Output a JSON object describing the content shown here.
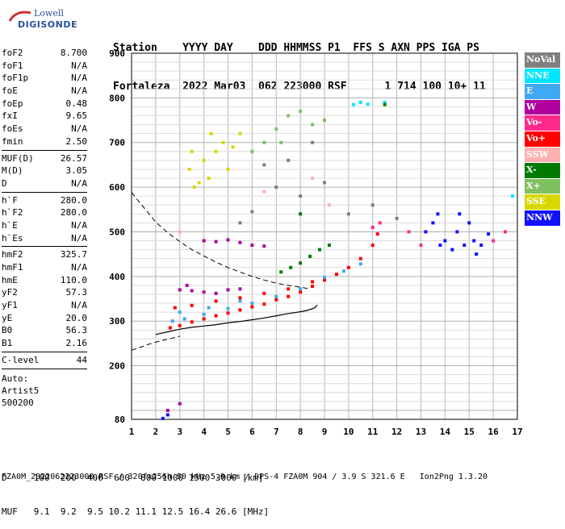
{
  "logo": {
    "line1": "Lowell",
    "line2": "DIGISONDE"
  },
  "header": {
    "labels": "Station    YYYY DAY    DDD HHMMSS P1  FFS S AXN PPS IGA PS",
    "values": "Fortaleza  2022 Mar03  062 223000 RSF      1 714 100 10+ 11"
  },
  "params": {
    "group1": [
      {
        "k": "foF2",
        "v": "8.700"
      },
      {
        "k": "foF1",
        "v": "N/A"
      },
      {
        "k": "foF1p",
        "v": "N/A"
      },
      {
        "k": "foE",
        "v": "N/A"
      },
      {
        "k": "foEp",
        "v": "0.48"
      },
      {
        "k": "fxI",
        "v": "9.65"
      },
      {
        "k": "foEs",
        "v": "N/A"
      },
      {
        "k": "fmin",
        "v": "2.50"
      }
    ],
    "group2": [
      {
        "k": "MUF(D)",
        "v": "26.57"
      },
      {
        "k": "M(D)",
        "v": "3.05"
      },
      {
        "k": "D",
        "v": "N/A"
      }
    ],
    "group3": [
      {
        "k": "h`F",
        "v": "280.0"
      },
      {
        "k": "h`F2",
        "v": "280.0"
      },
      {
        "k": "h`E",
        "v": "N/A"
      },
      {
        "k": "h`Es",
        "v": "N/A"
      }
    ],
    "group4": [
      {
        "k": "hmF2",
        "v": "325.7"
      },
      {
        "k": "hmF1",
        "v": "N/A"
      },
      {
        "k": "hmE",
        "v": "110.0"
      },
      {
        "k": "yF2",
        "v": "57.3"
      },
      {
        "k": "yF1",
        "v": "N/A"
      },
      {
        "k": "yE",
        "v": "20.0"
      },
      {
        "k": "B0",
        "v": "56.3"
      },
      {
        "k": "B1",
        "v": "2.16"
      }
    ],
    "group5": [
      {
        "k": "C-level",
        "v": "44"
      }
    ],
    "auto": [
      "Auto:",
      "Artist5",
      "500200"
    ]
  },
  "legend": [
    {
      "label": "NoVal",
      "color": "#808080"
    },
    {
      "label": "NNE",
      "color": "#00e5ff"
    },
    {
      "label": "E",
      "color": "#3fa9f5"
    },
    {
      "label": "W",
      "color": "#b0009f"
    },
    {
      "label": "Vo-",
      "color": "#ff2a8c"
    },
    {
      "label": "Vo+",
      "color": "#ff0000"
    },
    {
      "label": "SSW",
      "color": "#ffb0b0"
    },
    {
      "label": "X-",
      "color": "#007a00"
    },
    {
      "label": "X+",
      "color": "#7fc060"
    },
    {
      "label": "SSE",
      "color": "#d8d800"
    },
    {
      "label": "NNW",
      "color": "#1010ff"
    }
  ],
  "footer": {
    "line1": "D     100  200  400  600  800 1000 1500 3000 [km]",
    "line2": "MUF   9.1  9.2  9.5 10.2 11.1 12.5 16.4 26.6 [MHz]",
    "line3": "FZA0M_2022062223000.RSF / 320fx256h 50 kHz 5.0 km / DPS-4 FZA0M 904 / 3.9 S 321.6 E   Ion2Png 1.3.20"
  },
  "chart_data": {
    "type": "scatter",
    "xlabel": "",
    "ylabel": "",
    "xlim": [
      1,
      17
    ],
    "ylim": [
      80,
      900
    ],
    "xticks": [
      1,
      2,
      3,
      4,
      5,
      6,
      7,
      8,
      9,
      10,
      11,
      12,
      13,
      14,
      15,
      16,
      17
    ],
    "yticks": [
      80,
      200,
      300,
      400,
      500,
      600,
      700,
      800,
      900
    ],
    "grid": true,
    "legend_position": "right",
    "profile_solid": [
      [
        2.0,
        270
      ],
      [
        2.5,
        276
      ],
      [
        3.0,
        282
      ],
      [
        3.5,
        286
      ],
      [
        4.0,
        289
      ],
      [
        4.5,
        292
      ],
      [
        5.0,
        296
      ],
      [
        5.5,
        299
      ],
      [
        6.0,
        303
      ],
      [
        6.5,
        307
      ],
      [
        7.0,
        312
      ],
      [
        7.5,
        317
      ],
      [
        8.0,
        321
      ],
      [
        8.3,
        324
      ],
      [
        8.6,
        330
      ],
      [
        8.7,
        336
      ]
    ],
    "profile_dashed": [
      [
        1.0,
        588
      ],
      [
        1.5,
        555
      ],
      [
        2.0,
        522
      ],
      [
        2.5,
        498
      ],
      [
        3.0,
        478
      ],
      [
        3.5,
        460
      ],
      [
        4.0,
        446
      ],
      [
        4.5,
        432
      ],
      [
        5.0,
        420
      ],
      [
        5.5,
        410
      ],
      [
        6.0,
        400
      ],
      [
        6.5,
        392
      ],
      [
        7.0,
        385
      ],
      [
        7.5,
        380
      ],
      [
        8.0,
        376
      ],
      [
        8.3,
        373
      ]
    ],
    "profile_lower_dashed": [
      [
        1.0,
        235
      ],
      [
        1.3,
        240
      ],
      [
        1.7,
        248
      ],
      [
        2.2,
        256
      ],
      [
        2.7,
        262
      ],
      [
        3.0,
        266
      ]
    ],
    "series": [
      {
        "name": "Vo+",
        "points": [
          [
            2.6,
            285
          ],
          [
            3.0,
            290
          ],
          [
            3.5,
            298
          ],
          [
            4.0,
            305
          ],
          [
            4.5,
            312
          ],
          [
            5.0,
            318
          ],
          [
            5.5,
            325
          ],
          [
            6.0,
            332
          ],
          [
            6.5,
            338
          ],
          [
            7.0,
            348
          ],
          [
            7.5,
            355
          ],
          [
            8.0,
            365
          ],
          [
            8.5,
            378
          ],
          [
            9.0,
            392
          ],
          [
            9.5,
            405
          ],
          [
            10.0,
            420
          ],
          [
            10.5,
            440
          ],
          [
            11.0,
            470
          ],
          [
            11.2,
            495
          ],
          [
            2.8,
            330
          ],
          [
            3.5,
            335
          ],
          [
            4.5,
            345
          ],
          [
            5.5,
            352
          ],
          [
            6.5,
            362
          ],
          [
            7.5,
            372
          ],
          [
            8.5,
            388
          ]
        ]
      },
      {
        "name": "E",
        "points": [
          [
            2.7,
            300
          ],
          [
            3.2,
            305
          ],
          [
            4.0,
            315
          ],
          [
            5.0,
            328
          ],
          [
            6.0,
            340
          ],
          [
            7.0,
            355
          ],
          [
            8.0,
            372
          ],
          [
            9.0,
            398
          ],
          [
            9.8,
            412
          ],
          [
            10.5,
            428
          ],
          [
            3.0,
            320
          ],
          [
            4.2,
            330
          ],
          [
            5.5,
            345
          ]
        ]
      },
      {
        "name": "W",
        "points": [
          [
            3.0,
            370
          ],
          [
            3.5,
            368
          ],
          [
            4.0,
            365
          ],
          [
            4.5,
            362
          ],
          [
            5.0,
            370
          ],
          [
            5.5,
            372
          ],
          [
            4.0,
            480
          ],
          [
            4.5,
            478
          ],
          [
            5.0,
            482
          ],
          [
            5.5,
            476
          ],
          [
            6.0,
            470
          ],
          [
            6.5,
            468
          ],
          [
            3.3,
            380
          ],
          [
            2.5,
            100
          ],
          [
            3.0,
            115
          ]
        ]
      },
      {
        "name": "NNW",
        "points": [
          [
            13.2,
            500
          ],
          [
            13.5,
            520
          ],
          [
            13.8,
            470
          ],
          [
            14.0,
            480
          ],
          [
            14.3,
            460
          ],
          [
            14.5,
            500
          ],
          [
            14.8,
            470
          ],
          [
            15.0,
            520
          ],
          [
            15.2,
            480
          ],
          [
            15.5,
            470
          ],
          [
            15.8,
            495
          ],
          [
            13.7,
            540
          ],
          [
            14.6,
            540
          ],
          [
            15.3,
            450
          ],
          [
            2.3,
            82
          ],
          [
            2.5,
            90
          ]
        ]
      },
      {
        "name": "NNE",
        "points": [
          [
            10.2,
            785
          ],
          [
            10.5,
            790
          ],
          [
            10.8,
            786
          ],
          [
            11.5,
            790
          ],
          [
            16.8,
            580
          ]
        ]
      },
      {
        "name": "SSE",
        "points": [
          [
            3.4,
            640
          ],
          [
            3.6,
            600
          ],
          [
            3.8,
            610
          ],
          [
            4.0,
            660
          ],
          [
            4.2,
            620
          ],
          [
            4.5,
            680
          ],
          [
            4.8,
            700
          ],
          [
            5.0,
            640
          ],
          [
            5.2,
            690
          ],
          [
            5.5,
            720
          ],
          [
            3.5,
            680
          ],
          [
            4.3,
            720
          ]
        ]
      },
      {
        "name": "X-",
        "points": [
          [
            7.2,
            410
          ],
          [
            7.6,
            420
          ],
          [
            8.0,
            430
          ],
          [
            8.4,
            445
          ],
          [
            8.8,
            460
          ],
          [
            9.2,
            470
          ],
          [
            8.0,
            540
          ],
          [
            11.5,
            785
          ]
        ]
      },
      {
        "name": "X+",
        "points": [
          [
            6.5,
            700
          ],
          [
            7.0,
            730
          ],
          [
            7.5,
            760
          ],
          [
            8.0,
            770
          ],
          [
            8.5,
            740
          ],
          [
            9.0,
            750
          ],
          [
            6.0,
            680
          ],
          [
            7.2,
            700
          ]
        ]
      },
      {
        "name": "Vo-",
        "points": [
          [
            11.0,
            510
          ],
          [
            11.3,
            520
          ],
          [
            12.5,
            500
          ],
          [
            13.0,
            470
          ],
          [
            16.5,
            500
          ],
          [
            16.0,
            480
          ]
        ]
      },
      {
        "name": "SSW",
        "points": [
          [
            6.5,
            590
          ],
          [
            8.5,
            620
          ],
          [
            9.2,
            560
          ],
          [
            3.0,
            500
          ]
        ]
      },
      {
        "name": "NoVal",
        "points": [
          [
            5.5,
            520
          ],
          [
            6.0,
            545
          ],
          [
            7.0,
            600
          ],
          [
            8.0,
            580
          ],
          [
            9.0,
            610
          ],
          [
            10.0,
            540
          ],
          [
            11.0,
            560
          ],
          [
            12.0,
            530
          ],
          [
            6.5,
            650
          ],
          [
            7.5,
            660
          ],
          [
            8.5,
            700
          ]
        ]
      }
    ]
  }
}
